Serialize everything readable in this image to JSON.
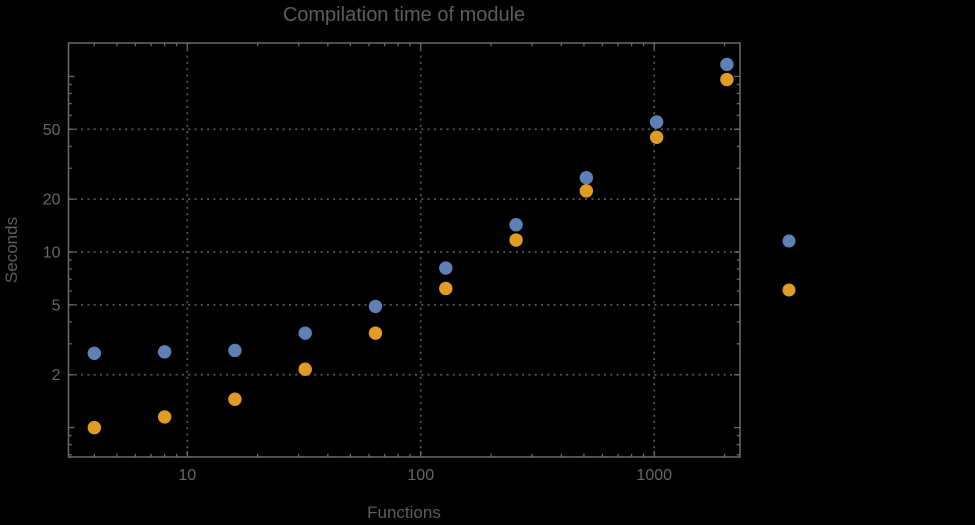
{
  "chart_data": {
    "type": "scatter",
    "title": "Compilation time of module",
    "xlabel": "Functions",
    "ylabel": "Seconds",
    "x_scale": "log",
    "y_scale": "log",
    "xlim": [
      3.1,
      2330
    ],
    "ylim": [
      0.68,
      155
    ],
    "grid": "dotted-at-labeled-ticks",
    "x": [
      4,
      8,
      16,
      32,
      64,
      128,
      256,
      512,
      1024,
      2048
    ],
    "series": [
      {
        "name": "series-1-blue",
        "color": "#5E81B5",
        "values": [
          2.65,
          2.7,
          2.75,
          3.45,
          4.9,
          8.1,
          14.3,
          26.5,
          55,
          117
        ]
      },
      {
        "name": "series-2-orange",
        "color": "#E19C24",
        "values": [
          1.0,
          1.15,
          1.45,
          2.15,
          3.45,
          6.2,
          11.7,
          22.3,
          45,
          96
        ]
      }
    ],
    "x_ticks": {
      "values": [
        10,
        100,
        1000
      ],
      "labels": [
        "10",
        "100",
        "1000"
      ]
    },
    "y_ticks": {
      "values": [
        2,
        5,
        10,
        20,
        50
      ],
      "labels": [
        "2",
        "5",
        "10",
        "20",
        "50"
      ]
    },
    "x_unlabeled_major_ticks": [],
    "y_unlabeled_major_ticks": [
      1,
      100
    ],
    "legend_position": "outside-right",
    "legend_markers": [
      {
        "name": "legend-marker-series-1",
        "color": "#5E81B5",
        "label": ""
      },
      {
        "name": "legend-marker-series-2",
        "color": "#E19C24",
        "label": ""
      }
    ]
  },
  "colors": {
    "background": "#000000",
    "frame": "#6b6b6b",
    "tick": "#6b6b6b",
    "grid": "#575757",
    "tick_label": "#666666",
    "title_text": "#5d5d5d"
  }
}
